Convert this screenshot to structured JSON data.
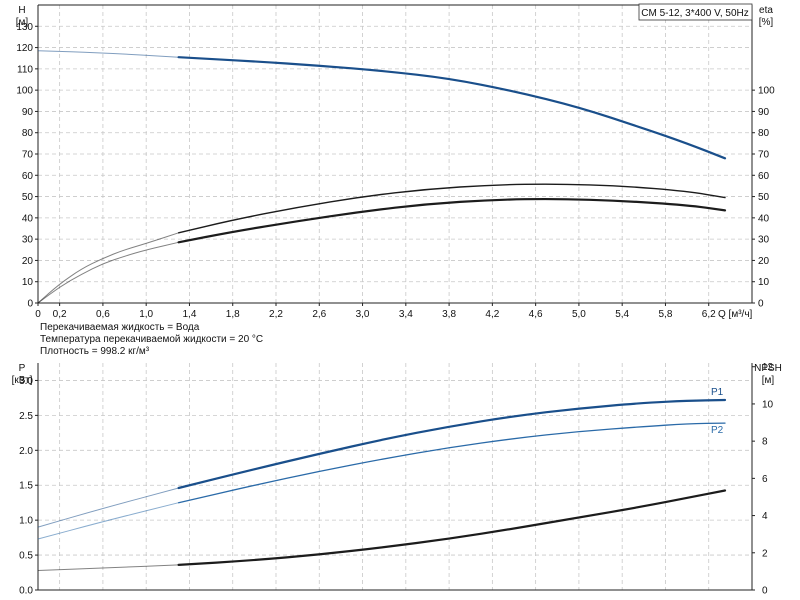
{
  "chart_data": [
    {
      "type": "line",
      "legend_box": "CM 5-12, 3*400 V, 50Hz",
      "xlabel": "Q [м³/ч]",
      "ylabel_left": [
        "H",
        "[м]"
      ],
      "ylabel_right": [
        "eta",
        "[%]"
      ],
      "xlim": [
        0,
        6.6
      ],
      "ylim_left": [
        0,
        140
      ],
      "ylim_right": [
        0,
        140
      ],
      "x_ticks": [
        "0",
        "0,2",
        "0,6",
        "1,0",
        "1,4",
        "1,8",
        "2,2",
        "2,6",
        "3,0",
        "3,4",
        "3,8",
        "4,2",
        "4,6",
        "5,0",
        "5,4",
        "5,8",
        "6,2"
      ],
      "x_tick_values": [
        0,
        0.2,
        0.6,
        1.0,
        1.4,
        1.8,
        2.2,
        2.6,
        3.0,
        3.4,
        3.8,
        4.2,
        4.6,
        5.0,
        5.4,
        5.8,
        6.2
      ],
      "y_ticks_left": [
        0,
        10,
        20,
        30,
        40,
        50,
        60,
        70,
        80,
        90,
        100,
        110,
        120,
        130
      ],
      "y_ticks_right": [
        0,
        10,
        20,
        30,
        40,
        50,
        60,
        70,
        80,
        90,
        100
      ],
      "grid": true,
      "series": [
        {
          "key": "H",
          "axis": "left",
          "color": "#1a4f8b",
          "width": 2.2,
          "x": [
            0,
            0.6,
            1.3,
            2.0,
            2.6,
            3.2,
            3.8,
            4.4,
            5.0,
            5.6,
            6.0,
            6.35
          ],
          "y": [
            118.5,
            117.5,
            115.5,
            113.5,
            111.5,
            109.0,
            105.5,
            99.5,
            92.0,
            82.0,
            75.0,
            68.0
          ],
          "thin_until": 1.3
        },
        {
          "key": "eta_total",
          "axis": "right",
          "color": "#1c1c1c",
          "width": 1.4,
          "x": [
            0,
            0.2,
            0.4,
            0.6,
            0.8,
            1.0,
            1.3,
            1.8,
            2.4,
            3.0,
            3.6,
            4.2,
            4.8,
            5.4,
            6.0,
            6.35
          ],
          "y": [
            0,
            9,
            16,
            21,
            25,
            28,
            33,
            39,
            45,
            50,
            53.5,
            55.5,
            56,
            55,
            52.5,
            49.5
          ],
          "thin_until": 1.3
        },
        {
          "key": "eta_pump",
          "axis": "right",
          "color": "#1c1c1c",
          "width": 2.2,
          "x": [
            0,
            0.2,
            0.4,
            0.6,
            0.8,
            1.0,
            1.3,
            1.8,
            2.4,
            3.0,
            3.6,
            4.2,
            4.8,
            5.4,
            6.0,
            6.35
          ],
          "y": [
            0,
            7.5,
            13.5,
            18.5,
            22,
            25,
            28.5,
            33.5,
            38.5,
            43,
            46.5,
            48.5,
            49,
            48,
            46,
            43.5
          ],
          "thin_until": 1.3
        }
      ]
    },
    {
      "type": "line",
      "info_lines": [
        "Перекачиваемая жидкость = Вода",
        "Температура перекачиваемой жидкости = 20 °C",
        "Плотность = 998.2 кг/м³"
      ],
      "ylabel_left": [
        "P",
        "[кВт]"
      ],
      "ylabel_right": [
        "NPSH",
        "[м]"
      ],
      "xlim": [
        0,
        6.6
      ],
      "ylim_left": [
        0,
        3.25
      ],
      "ylim_right": [
        0,
        12.2
      ],
      "y_ticks_left": [
        "0.0",
        "0.5",
        "1.0",
        "1.5",
        "2.0",
        "2.5",
        "3.0"
      ],
      "y_tick_values_left": [
        0,
        0.5,
        1.0,
        1.5,
        2.0,
        2.5,
        3.0
      ],
      "y_ticks_right": [
        0,
        2,
        4,
        6,
        8,
        10,
        12
      ],
      "grid": true,
      "series": [
        {
          "name": "P1",
          "axis": "left",
          "color": "#1a4f8b",
          "width": 2.2,
          "x": [
            0,
            0.6,
            1.3,
            2.0,
            2.6,
            3.2,
            3.8,
            4.4,
            5.0,
            5.6,
            6.0,
            6.35
          ],
          "y": [
            0.9,
            1.17,
            1.46,
            1.73,
            1.95,
            2.16,
            2.34,
            2.49,
            2.6,
            2.68,
            2.71,
            2.72
          ],
          "thin_until": 1.3
        },
        {
          "name": "P2",
          "axis": "left",
          "color": "#2a6aa8",
          "width": 1.3,
          "x": [
            0,
            0.6,
            1.3,
            2.0,
            2.6,
            3.2,
            3.8,
            4.4,
            5.0,
            5.6,
            6.0,
            6.35
          ],
          "y": [
            0.73,
            0.98,
            1.25,
            1.5,
            1.7,
            1.88,
            2.04,
            2.17,
            2.27,
            2.34,
            2.38,
            2.39
          ],
          "thin_until": 1.3
        },
        {
          "key": "NPSH",
          "axis": "right",
          "color": "#1c1c1c",
          "width": 2.2,
          "x": [
            0,
            0.6,
            1.3,
            2.0,
            2.6,
            3.2,
            3.8,
            4.4,
            5.0,
            5.6,
            6.0,
            6.35
          ],
          "y": [
            1.05,
            1.18,
            1.35,
            1.6,
            1.9,
            2.3,
            2.75,
            3.3,
            3.9,
            4.5,
            4.95,
            5.35
          ],
          "thin_until": 1.3
        }
      ]
    }
  ]
}
